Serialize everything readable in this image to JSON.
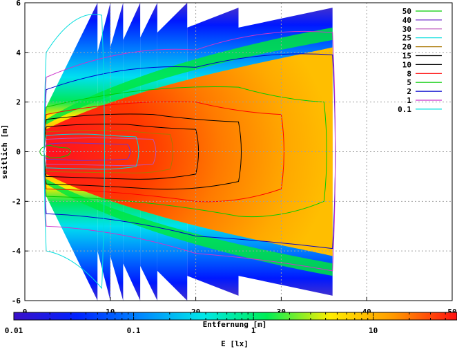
{
  "chart_data": {
    "type": "heatmap",
    "title": "",
    "xlabel": "Entfernung [m]",
    "ylabel": "seitlich [m]",
    "xlim": [
      0,
      50
    ],
    "ylim": [
      -6,
      6
    ],
    "xticks": [
      "0",
      "10",
      "20",
      "30",
      "40",
      "50"
    ],
    "yticks": [
      "-6",
      "-4",
      "-2",
      "0",
      "2",
      "4",
      "6"
    ],
    "grid": true,
    "legend_position": "top-right",
    "colorbar": {
      "label": "E [lx]",
      "scale": "log",
      "range": [
        0.01,
        50
      ],
      "ticks": [
        "0.01",
        "0.1",
        "1",
        "10"
      ],
      "stops": [
        "#3a10c8",
        "#0022ff",
        "#0088ff",
        "#00e8e8",
        "#00ee55",
        "#ffee00",
        "#ff9900",
        "#ff1010"
      ]
    },
    "series": [
      {
        "name": "50",
        "color": "#00cc00",
        "x": [
          2.0,
          3.0,
          5.0
        ],
        "lateral": [
          0.15,
          0.25,
          0.15
        ]
      },
      {
        "name": "40",
        "color": "#7733cc",
        "x": [
          2.5,
          6.0,
          12.0
        ],
        "lateral": [
          0.3,
          0.35,
          0.3
        ]
      },
      {
        "name": "30",
        "color": "#bb55bb",
        "x": [
          2.5,
          10.0,
          15.0
        ],
        "lateral": [
          0.5,
          0.55,
          0.5
        ]
      },
      {
        "name": "25",
        "color": "#00dddd",
        "x": [
          2.5,
          8.0,
          13.0
        ],
        "lateral": [
          0.65,
          0.7,
          0.6
        ]
      },
      {
        "name": "20",
        "color": "#aa7700",
        "x": [
          2.5,
          12.0,
          17.0
        ],
        "lateral": [
          0.8,
          0.85,
          0.7
        ]
      },
      {
        "name": "15",
        "color": "#000000",
        "x": [
          2.5,
          12.0,
          20.0
        ],
        "lateral": [
          1.0,
          1.1,
          0.9
        ]
      },
      {
        "name": "10",
        "color": "#000000",
        "x": [
          2.5,
          15.0,
          25.0
        ],
        "lateral": [
          1.3,
          1.5,
          1.2
        ]
      },
      {
        "name": "8",
        "color": "#ff0000",
        "x": [
          2.5,
          20.0,
          30.0
        ],
        "lateral": [
          1.5,
          2.0,
          1.5
        ]
      },
      {
        "name": "5",
        "color": "#00cc00",
        "x": [
          2.5,
          25.0,
          35.0
        ],
        "lateral": [
          1.8,
          2.6,
          2.0
        ]
      },
      {
        "name": "2",
        "color": "#0000cc",
        "x": [
          2.5,
          20.0,
          36.0
        ],
        "lateral": [
          2.5,
          3.4,
          3.9
        ]
      },
      {
        "name": "1",
        "color": "#cc33cc",
        "x": [
          2.5,
          20.0,
          36.0
        ],
        "lateral": [
          3.0,
          4.1,
          4.8
        ]
      },
      {
        "name": "0.1",
        "color": "#00dddd",
        "x": [
          2.5,
          9.0
        ],
        "lateral": [
          4.0,
          5.5
        ]
      }
    ]
  }
}
